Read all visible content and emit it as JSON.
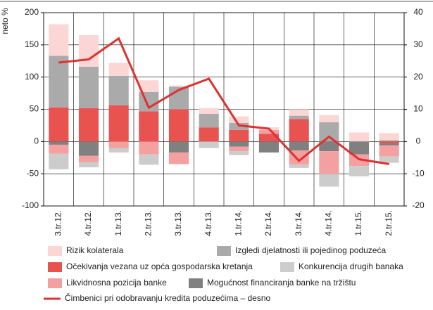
{
  "chart_data": {
    "type": "stacked-bar-line",
    "y_label": "neto %",
    "categories": [
      "3.tr.12.",
      "4.tr.12.",
      "1.tr.13.",
      "2.tr.13.",
      "3.tr.13.",
      "4.tr.13.",
      "1.tr.14.",
      "2.tr.14.",
      "3.tr.14.",
      "4.tr.14.",
      "1.tr.15.",
      "2.tr.15."
    ],
    "series": [
      {
        "name": "Očekivanja vezana uz opća gospodarska kretanja",
        "color": "#e8534f",
        "values": [
          53,
          52,
          56,
          47,
          50,
          22,
          18,
          12,
          35,
          0,
          0,
          -3
        ]
      },
      {
        "name": "Mogućnost financiranja banke na tržištu",
        "color": "#808080",
        "values": [
          -5,
          -22,
          0,
          0,
          -17,
          0,
          -8,
          -17,
          -14,
          -15,
          -20,
          -3
        ]
      },
      {
        "name": "Likvidnosna pozicija banke",
        "color": "#f4a0a0",
        "values": [
          -14,
          -10,
          -10,
          -20,
          -18,
          0,
          -7,
          6,
          -22,
          -35,
          -18,
          -17
        ]
      },
      {
        "name": "Izgledi djelatnosti ili pojedinog poduzeća",
        "color": "#aaaaaa",
        "values": [
          80,
          64,
          46,
          30,
          35,
          21,
          11,
          0,
          5,
          30,
          0,
          2
        ]
      },
      {
        "name": "Rizik kolaterala",
        "color": "#fcd5d5",
        "values": [
          49,
          49,
          20,
          18,
          2,
          9,
          10,
          4,
          10,
          11,
          14,
          11
        ]
      },
      {
        "name": "Konkurencija drugih banaka",
        "color": "#cccccc",
        "values": [
          -24,
          -8,
          -7,
          -16,
          0,
          -10,
          -6,
          0,
          -5,
          -20,
          -16,
          -10
        ]
      },
      {
        "name": "Čimbenici pri odobravanju kredita poduzećima – desno",
        "color": "#e03030",
        "axis": "y2",
        "values": [
          24.5,
          25.5,
          32,
          10.5,
          16,
          19.5,
          5,
          4,
          -6,
          1.5,
          -5.5,
          -7
        ]
      }
    ],
    "ylim": [
      -100,
      200
    ],
    "yticks": [
      -100,
      -50,
      0,
      50,
      100,
      150,
      200
    ],
    "y2lim": [
      -20,
      40
    ],
    "y2ticks": [
      -20,
      -10,
      0,
      10,
      20,
      30,
      40
    ],
    "grid": true
  }
}
